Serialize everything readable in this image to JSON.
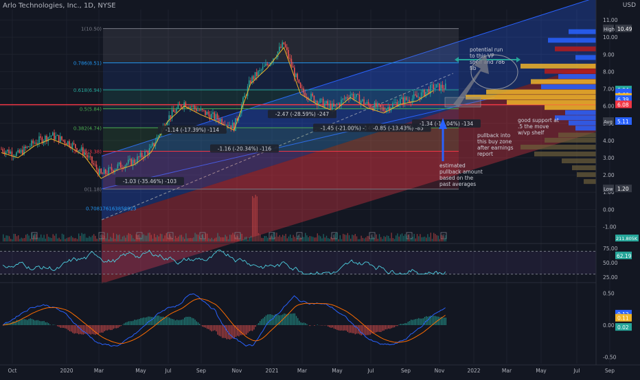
{
  "header": {
    "ticker_line": "Arlo Technologies, Inc., 1D, NYSE",
    "currency": "USD"
  },
  "colors": {
    "background": "#131722",
    "candle_up": "#26a69a",
    "candle_down": "#ef5350",
    "price_line": "#f23645",
    "ma": "#f0b429",
    "channel_blue": "#2962ff",
    "fib_line": "#787b86",
    "arrow": "#2962ff",
    "rsi": "#4dd0e1",
    "macd": "#2962ff",
    "signal": "#ff6d00"
  },
  "chart_data": [
    {
      "type": "line",
      "title": "",
      "pane": "price",
      "x_ticks": [
        "Oct",
        "2020",
        "Mar",
        "May",
        "Jul",
        "Sep",
        "Nov",
        "2021",
        "Mar",
        "May",
        "Jul",
        "Sep",
        "Nov",
        "2022",
        "Mar",
        "May",
        "Jul",
        "Sep"
      ],
      "y_ticks": [
        "11.00",
        "10.00",
        "9.00",
        "8.00",
        "7.00",
        "6.00",
        "5.00",
        "4.00",
        "3.00",
        "2.00",
        "1.00",
        "0.00",
        "-1.00"
      ],
      "ylim": [
        -1.3,
        11.6
      ],
      "price_labels": [
        {
          "text": "High",
          "value": "10.49"
        },
        {
          "text": "",
          "value": "6.94"
        },
        {
          "text": "",
          "value": "6.77"
        },
        {
          "text": "",
          "value": "6.66"
        },
        {
          "text": "",
          "value": "6.51"
        },
        {
          "text": "",
          "value": "6.39"
        },
        {
          "text": "",
          "value": "6.08"
        },
        {
          "text": "Avg",
          "value": "5.11"
        },
        {
          "text": "Low",
          "value": "1.20"
        }
      ],
      "fib_levels": [
        {
          "label": "1(10.50)",
          "value": 10.5
        },
        {
          "label": "0.786(8.51)",
          "value": 8.51
        },
        {
          "label": "0.618(6.94)",
          "value": 6.94
        },
        {
          "label": "0.5(5.84)",
          "value": 5.84
        },
        {
          "label": "0.382(4.74)",
          "value": 4.74
        },
        {
          "label": "0.236(3.38)",
          "value": 3.38
        },
        {
          "label": "0(1.18)",
          "value": 1.18
        }
      ],
      "fib_extra_label": "0.708176163858023",
      "pullbacks": [
        "-1.03 (-35.46%) -103",
        "-1.14 (-17.39%) -114",
        "-1.16 (-20.34%) -116",
        "-2.47 (-28.59%) -247",
        "-1.45 (-21.00%) -145",
        "-0.85 (-13.43%) -85",
        "-1.34 (-19.04%) -134"
      ],
      "annotations": [
        "potential run to this VP shelf and 786 fib",
        "good support at .5 the move w/vp shelf",
        "pullback into this buy zone after earnings report",
        "estimated pullback amount based on the past averages"
      ],
      "series": [
        {
          "name": "Close",
          "x": [
            "2019-09",
            "2019-10",
            "2019-11",
            "2019-12",
            "2020-01",
            "2020-02",
            "2020-03",
            "2020-04",
            "2020-05",
            "2020-06",
            "2020-07",
            "2020-08",
            "2020-09",
            "2020-10",
            "2020-11",
            "2020-12",
            "2021-01",
            "2021-02",
            "2021-03",
            "2021-04",
            "2021-05",
            "2021-06",
            "2021-07",
            "2021-08",
            "2021-09",
            "2021-10",
            "2021-11"
          ],
          "values": [
            3.5,
            3.2,
            3.9,
            4.3,
            3.9,
            3.3,
            2.0,
            2.5,
            2.8,
            3.5,
            5.3,
            6.2,
            5.7,
            5.3,
            4.8,
            7.5,
            8.4,
            9.6,
            6.9,
            6.3,
            5.9,
            6.7,
            6.1,
            5.8,
            6.3,
            6.5,
            7.1
          ]
        }
      ],
      "earnings_marker": "E"
    },
    {
      "type": "bar",
      "pane": "volume",
      "title": "",
      "value_label": "211.805K"
    },
    {
      "type": "line",
      "pane": "rsi",
      "title": "",
      "y_ticks": [
        "75.00",
        "50.00",
        "25.00"
      ],
      "ylim": [
        20,
        80
      ],
      "series": [
        {
          "name": "",
          "current": "62.19"
        }
      ]
    },
    {
      "type": "line",
      "pane": "macd",
      "title": "",
      "y_ticks": [
        "0.50",
        "0.00",
        "-0.50"
      ],
      "ylim": [
        -0.6,
        0.6
      ],
      "series": [
        {
          "name": "",
          "current": "0.12"
        },
        {
          "name": "",
          "current": "0.11"
        },
        {
          "name": "",
          "current": "0.02"
        }
      ]
    }
  ]
}
